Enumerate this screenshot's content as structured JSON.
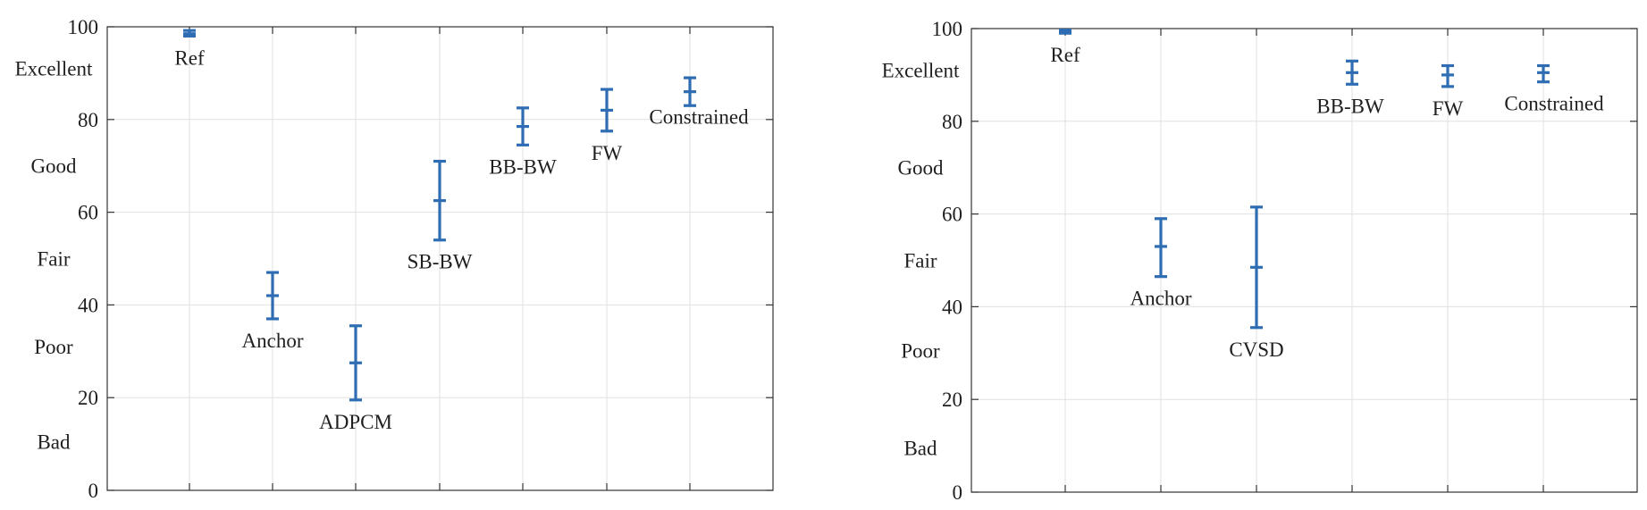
{
  "chart_data": [
    {
      "type": "errorbar",
      "ylim": [
        0,
        100
      ],
      "yticks": [
        0,
        20,
        40,
        60,
        80,
        100
      ],
      "quality_labels": [
        {
          "label": "Excellent",
          "y": 91
        },
        {
          "label": "Good",
          "y": 70
        },
        {
          "label": "Fair",
          "y": 50
        },
        {
          "label": "Poor",
          "y": 31
        },
        {
          "label": "Bad",
          "y": 10.5
        }
      ],
      "grid": true,
      "color": "#2e6db3",
      "points": [
        {
          "label": "Ref",
          "mean": 98.5,
          "lower": 98.0,
          "upper": 99.2
        },
        {
          "label": "Anchor",
          "mean": 42,
          "lower": 37,
          "upper": 47
        },
        {
          "label": "ADPCM",
          "mean": 27.5,
          "lower": 19.5,
          "upper": 35.5
        },
        {
          "label": "SB-BW",
          "mean": 62.5,
          "lower": 54,
          "upper": 71
        },
        {
          "label": "BB-BW",
          "mean": 78.5,
          "lower": 74.5,
          "upper": 82.5
        },
        {
          "label": "FW",
          "mean": 82,
          "lower": 77.5,
          "upper": 86.5
        },
        {
          "label": "Constrained",
          "mean": 86,
          "lower": 83,
          "upper": 89
        }
      ]
    },
    {
      "type": "errorbar",
      "ylim": [
        0,
        100
      ],
      "yticks": [
        0,
        20,
        40,
        60,
        80,
        100
      ],
      "quality_labels": [
        {
          "label": "Excellent",
          "y": 91
        },
        {
          "label": "Good",
          "y": 70
        },
        {
          "label": "Fair",
          "y": 50
        },
        {
          "label": "Poor",
          "y": 30.5
        },
        {
          "label": "Bad",
          "y": 9.5
        }
      ],
      "grid": true,
      "color": "#2e6db3",
      "points": [
        {
          "label": "Ref",
          "mean": 99.3,
          "lower": 99.0,
          "upper": 99.7
        },
        {
          "label": "Anchor",
          "mean": 53,
          "lower": 46.5,
          "upper": 59
        },
        {
          "label": "CVSD",
          "mean": 48.5,
          "lower": 35.5,
          "upper": 61.5
        },
        {
          "label": "BB-BW",
          "mean": 90.5,
          "lower": 88,
          "upper": 93
        },
        {
          "label": "FW",
          "mean": 90,
          "lower": 87.5,
          "upper": 92
        },
        {
          "label": "Constrained",
          "mean": 90.5,
          "lower": 88.5,
          "upper": 92
        }
      ]
    }
  ]
}
